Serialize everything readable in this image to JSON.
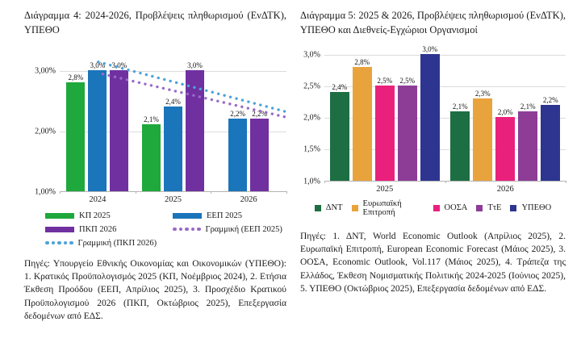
{
  "page": {
    "background": "#ffffff"
  },
  "notes": {
    "left": "Πηγές: Υπουργείο Εθνικής Οικονομίας και Οικονομικών (ΥΠΕΘΟ): 1. Κρατικός Προϋπολογισμός 2025 (ΚΠ, Νοέμβριος 2024), 2. Ετήσια Έκθεση Προόδου (ΕΕΠ, Απρίλιος 2025), 3. Προσχέδιο Κρατικού Προϋπολογισμού 2026 (ΠΚΠ, Οκτώβριος 2025), Επεξεργασία δεδομένων από ΕΔΣ.",
    "right": "Πηγές: 1. ΔΝΤ, World Economic Outlook (Απρίλιος 2025), 2. Ευρωπαϊκή Επιτροπή, European Economic Forecast (Μάιος 2025), 3. ΟΟΣΑ, Economic Outlook, Vol.117 (Μάιος 2025), 4. Τράπεζα της Ελλάδος, Έκθεση Νομισματικής Πολιτικής 2024-2025 (Ιούνιος 2025), 5. ΥΠΕΘΟ (Οκτώβριος 2025), Επεξεργασία δεδομένων από ΕΔΣ."
  },
  "chart_data": [
    {
      "type": "bar",
      "title": "Διάγραμμα 4: 2024-2026, Προβλέψεις πληθωρισμού (ΕνΔΤΚ), ΥΠΕΘΟ",
      "categories": [
        "2024",
        "2025",
        "2026"
      ],
      "series": [
        {
          "name": "ΚΠ 2025",
          "color": "#1fa83c",
          "values": [
            2.8,
            2.1,
            null
          ],
          "labels": [
            "2,8%",
            "2,1%",
            ""
          ]
        },
        {
          "name": "ΕΕΠ 2025",
          "color": "#1a75bb",
          "values": [
            3.0,
            2.4,
            2.2
          ],
          "labels": [
            "3,0%",
            "2,4%",
            "2,2%"
          ]
        },
        {
          "name": "ΠΚΠ 2026",
          "color": "#7030a0",
          "values": [
            3.0,
            3.0,
            2.2
          ],
          "labels": [
            "3,0%",
            "3,0%",
            "2,2%"
          ]
        }
      ],
      "trendlines": [
        {
          "name": "Γραμμική (ΕΕΠ 2025)",
          "color": "#9a6bc6",
          "x1": 0.19,
          "x2": 0.995,
          "v1": 2.95,
          "v2": 2.24
        },
        {
          "name": "Γραμμική (ΠΚΠ 2026)",
          "color": "#4da3d9",
          "x1": 0.17,
          "x2": 0.995,
          "v1": 3.15,
          "v2": 2.33
        }
      ],
      "ylim": [
        1.0,
        3.0
      ],
      "yticks": [
        {
          "label": "3,00%",
          "value": 3.0
        },
        {
          "label": "2,00%",
          "value": 2.0
        },
        {
          "label": "1,00%",
          "value": 1.0
        }
      ],
      "gridlines": [
        3.0,
        2.0
      ],
      "grid": true,
      "legend_position": "bottom",
      "legend": [
        {
          "label": "ΚΠ 2025",
          "marker": "bar",
          "color": "#1fa83c"
        },
        {
          "label": "ΕΕΠ 2025",
          "marker": "bar",
          "color": "#1a75bb"
        },
        {
          "label": "ΠΚΠ 2026",
          "marker": "bar",
          "color": "#7030a0"
        },
        {
          "label": "Γραμμική (ΕΕΠ 2025)",
          "marker": "dots",
          "color": "#9a6bc6"
        },
        {
          "label": "Γραμμική (ΠΚΠ 2026)",
          "marker": "dots",
          "color": "#4da3d9"
        }
      ]
    },
    {
      "type": "bar",
      "title": "Διάγραμμα 5: 2025 & 2026, Προβλέψεις πληθωρισμού (ΕνΔΤΚ), ΥΠΕΘΟ και Διεθνείς-Εγχώριοι Οργανισμοί",
      "categories": [
        "2025",
        "2026"
      ],
      "series": [
        {
          "name": "ΔΝΤ",
          "color": "#1e6e43",
          "values": [
            2.4,
            2.1
          ],
          "labels": [
            "2,4%",
            "2,1%"
          ]
        },
        {
          "name": "Ευρωπαϊκή Επιτροπή",
          "color": "#e9a33c",
          "values": [
            2.8,
            2.3
          ],
          "labels": [
            "2,8%",
            "2,3%"
          ]
        },
        {
          "name": "ΟΟΣΑ",
          "color": "#e9217c",
          "values": [
            2.5,
            2.0
          ],
          "labels": [
            "2,5%",
            "2,0%"
          ]
        },
        {
          "name": "ΤτΕ",
          "color": "#8d3d96",
          "values": [
            2.5,
            2.1
          ],
          "labels": [
            "2,5%",
            "2,1%"
          ]
        },
        {
          "name": "ΥΠΕΘΟ",
          "color": "#2d3590",
          "values": [
            3.0,
            2.2
          ],
          "labels": [
            "3,0%",
            "2,2%"
          ]
        }
      ],
      "ylim": [
        1.0,
        3.0
      ],
      "yticks": [
        {
          "label": "3,0%",
          "value": 3.0
        },
        {
          "label": "2,5%",
          "value": 2.5
        },
        {
          "label": "2,0%",
          "value": 2.0
        },
        {
          "label": "1,5%",
          "value": 1.5
        },
        {
          "label": "1,0%",
          "value": 1.0
        }
      ],
      "gridlines": [
        3.0,
        2.5,
        2.0,
        1.5
      ],
      "grid": true,
      "legend_position": "bottom",
      "legend": [
        {
          "label": "ΔΝΤ",
          "marker": "square",
          "color": "#1e6e43"
        },
        {
          "label": "Ευρωπαϊκή Επιτροπή",
          "marker": "square",
          "color": "#e9a33c"
        },
        {
          "label": "ΟΟΣΑ",
          "marker": "square",
          "color": "#e9217c"
        },
        {
          "label": "ΤτΕ",
          "marker": "square",
          "color": "#8d3d96"
        },
        {
          "label": "ΥΠΕΘΟ",
          "marker": "square",
          "color": "#2d3590"
        }
      ]
    }
  ]
}
